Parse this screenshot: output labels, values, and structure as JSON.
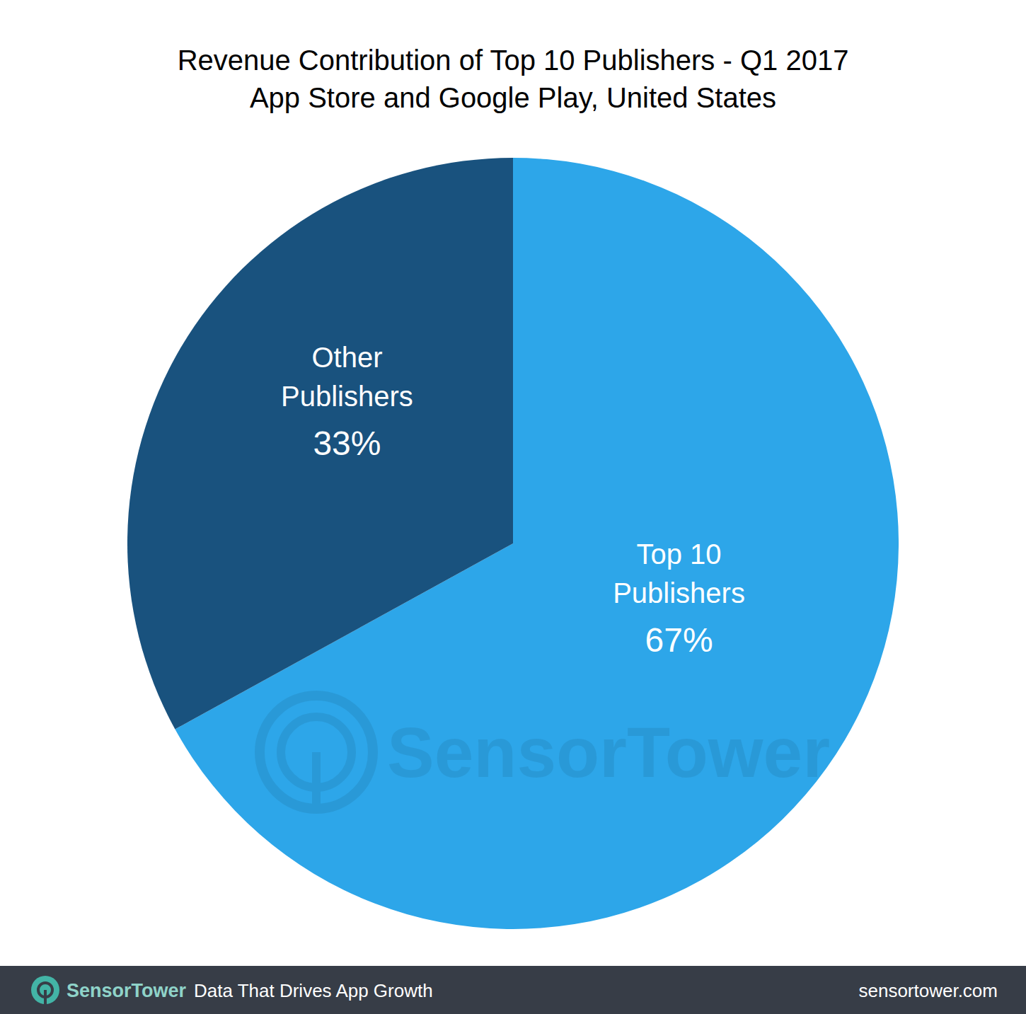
{
  "chart_data": {
    "type": "pie",
    "title": "Revenue Contribution of Top 10 Publishers - Q1 2017",
    "subtitle": "App Store and Google Play, United States",
    "categories": [
      "Top 10 Publishers",
      "Other Publishers"
    ],
    "values": [
      67,
      33
    ],
    "value_labels": [
      "67%",
      "33%"
    ],
    "colors": [
      "#2DA6E9",
      "#19527E"
    ],
    "data_labels": true
  },
  "branding": {
    "watermark": "SensorTower",
    "logo": "SensorTower",
    "tagline": "Data That Drives App Growth",
    "url": "sensortower.com"
  }
}
